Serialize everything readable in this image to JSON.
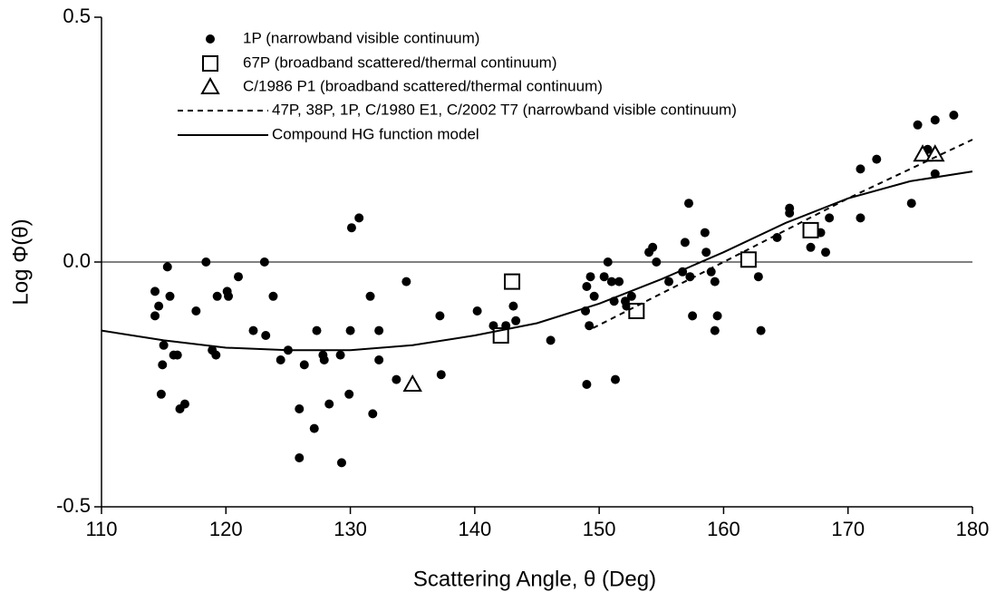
{
  "chart_data": {
    "type": "scatter",
    "xlabel": "Scattering Angle, θ (Deg)",
    "ylabel": "Log Φ(θ)",
    "xlim": [
      110,
      180
    ],
    "xticks": [
      110,
      120,
      130,
      140,
      150,
      160,
      170,
      180
    ],
    "ylim": [
      -0.5,
      0.5
    ],
    "yticks": [
      -0.5,
      {
        "value": 0,
        "label": "0.0"
      },
      0.5
    ],
    "zero_line": true,
    "series": [
      {
        "name": "1P (narrowband visible continuum)",
        "kind": "dot",
        "color": "#000000",
        "x": [
          114.3,
          114.3,
          114.6,
          114.8,
          114.9,
          115.0,
          115.3,
          115.5,
          115.8,
          116.1,
          116.3,
          116.7,
          117.6,
          118.4,
          118.9,
          119.2,
          119.3,
          120.1,
          120.2,
          121.0,
          122.2,
          123.1,
          123.2,
          123.8,
          124.4,
          125.0,
          125.9,
          125.9,
          126.3,
          127.1,
          127.3,
          127.8,
          127.9,
          128.3,
          129.2,
          129.3,
          129.9,
          130.0,
          130.1,
          130.7,
          131.6,
          131.8,
          132.3,
          132.3,
          133.7,
          134.5,
          137.2,
          137.3,
          140.2,
          141.5,
          142.5,
          143.1,
          143.3,
          146.1,
          148.9,
          149.0,
          149.0,
          149.2,
          149.3,
          149.6,
          150.4,
          150.7,
          151.0,
          151.2,
          151.3,
          151.6,
          152.1,
          152.2,
          152.6,
          154.0,
          154.3,
          154.6,
          155.6,
          156.7,
          156.9,
          157.2,
          157.3,
          157.5,
          158.5,
          158.6,
          159.0,
          159.3,
          159.3,
          159.5,
          162.8,
          163.0,
          164.3,
          165.3,
          165.3,
          167.0,
          167.8,
          168.2,
          168.5,
          171.0,
          171.0,
          172.3,
          175.1,
          175.6,
          176.4,
          177.0,
          177.0,
          178.5
        ],
        "values": [
          -0.06,
          -0.11,
          -0.09,
          -0.27,
          -0.21,
          -0.17,
          -0.01,
          -0.07,
          -0.19,
          -0.19,
          -0.3,
          -0.29,
          -0.1,
          0.0,
          -0.18,
          -0.19,
          -0.07,
          -0.06,
          -0.07,
          -0.03,
          -0.14,
          0.0,
          -0.15,
          -0.07,
          -0.2,
          -0.18,
          -0.3,
          -0.4,
          -0.21,
          -0.34,
          -0.14,
          -0.19,
          -0.2,
          -0.29,
          -0.19,
          -0.41,
          -0.27,
          -0.14,
          0.07,
          0.09,
          -0.07,
          -0.31,
          -0.14,
          -0.2,
          -0.24,
          -0.04,
          -0.11,
          -0.23,
          -0.1,
          -0.13,
          -0.13,
          -0.09,
          -0.12,
          -0.16,
          -0.1,
          -0.05,
          -0.25,
          -0.13,
          -0.03,
          -0.07,
          -0.03,
          0.0,
          -0.04,
          -0.08,
          -0.24,
          -0.04,
          -0.08,
          -0.09,
          -0.07,
          0.02,
          0.03,
          0.0,
          -0.04,
          -0.02,
          0.04,
          0.12,
          -0.03,
          -0.11,
          0.06,
          0.02,
          -0.02,
          -0.04,
          -0.14,
          -0.11,
          -0.03,
          -0.14,
          0.05,
          0.1,
          0.11,
          0.03,
          0.06,
          0.02,
          0.09,
          0.19,
          0.09,
          0.21,
          0.12,
          0.28,
          0.23,
          0.29,
          0.18,
          0.3
        ]
      },
      {
        "name": "67P (broadband scattered/thermal continuum)",
        "kind": "square",
        "color": "#000000",
        "x": [
          142.1,
          143.0,
          153.0,
          162.0,
          167.0
        ],
        "values": [
          -0.15,
          -0.04,
          -0.1,
          0.005,
          0.065
        ]
      },
      {
        "name": "C/1986 P1 (broadband scattered/thermal continuum)",
        "kind": "triangle",
        "color": "#000000",
        "x": [
          135.0,
          176.0,
          177.0
        ],
        "values": [
          -0.25,
          0.22,
          0.22
        ]
      },
      {
        "name": "47P, 38P, 1P, C/1980 E1, C/2002 T7 (narrowband visible continuum)",
        "kind": "dashed",
        "color": "#000000",
        "x": [
          149.5,
          160,
          170,
          180
        ],
        "values": [
          -0.135,
          0.0,
          0.13,
          0.25
        ]
      },
      {
        "name": "Compound HG function model",
        "kind": "solid",
        "color": "#000000",
        "x": [
          110,
          115,
          120,
          125,
          130,
          135,
          140,
          145,
          150,
          155,
          160,
          165,
          170,
          175,
          180
        ],
        "values": [
          -0.14,
          -0.16,
          -0.175,
          -0.18,
          -0.18,
          -0.17,
          -0.15,
          -0.125,
          -0.085,
          -0.035,
          0.02,
          0.08,
          0.13,
          0.165,
          0.185
        ]
      }
    ]
  }
}
